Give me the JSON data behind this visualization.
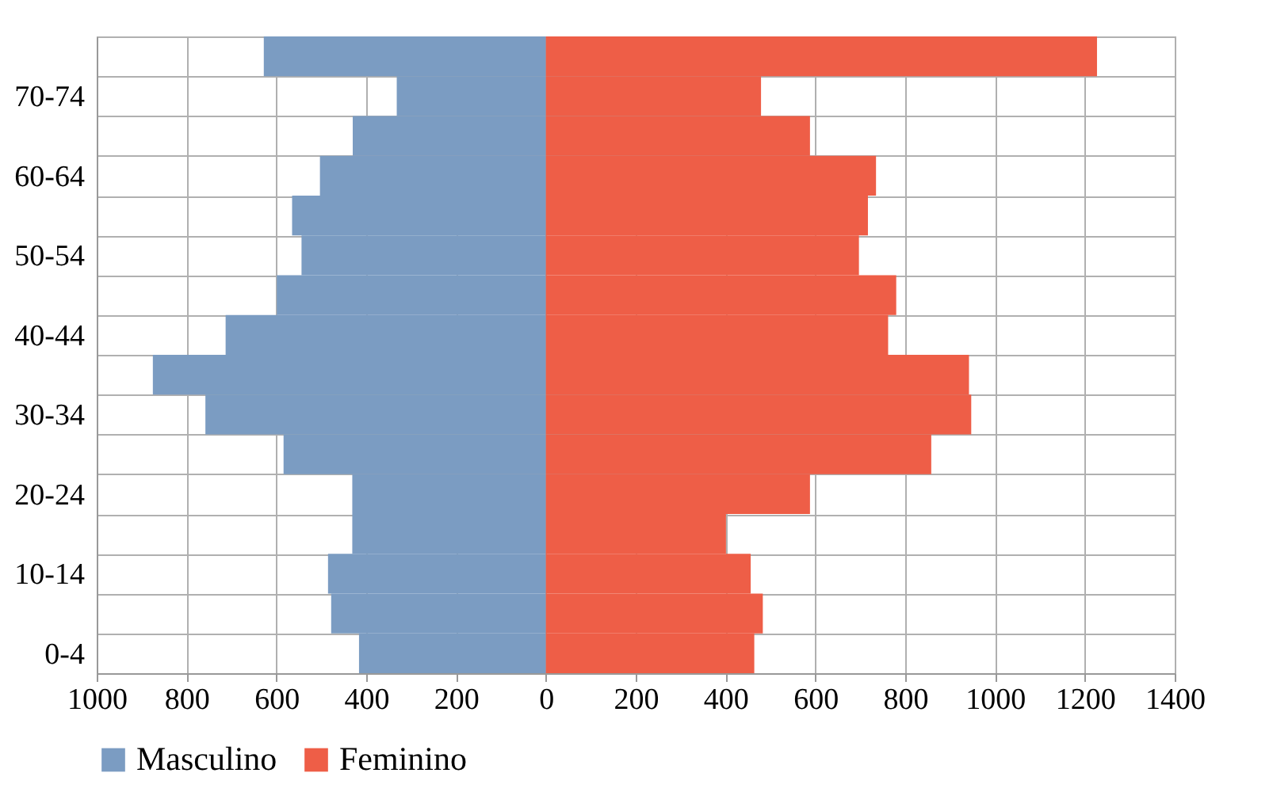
{
  "chart_data": {
    "type": "bar",
    "orientation": "horizontal",
    "categories": [
      null,
      "70-74",
      null,
      "60-64",
      null,
      "50-54",
      null,
      "40-44",
      null,
      "30-34",
      null,
      "20-24",
      null,
      "10-14",
      null,
      "0-4"
    ],
    "series": [
      {
        "name": "Masculino",
        "color": "#7b9cc2",
        "values": [
          -628,
          -332,
          -430,
          -503,
          -565,
          -544,
          -599,
          -713,
          -875,
          -758,
          -584,
          -431,
          -431,
          -485,
          -478,
          -416
        ]
      },
      {
        "name": "Feminino",
        "color": "#ee5e47",
        "values": [
          1227,
          479,
          588,
          735,
          717,
          697,
          780,
          762,
          942,
          947,
          858,
          588,
          401,
          456,
          483,
          464
        ]
      }
    ],
    "xlim": [
      -1000,
      1400
    ],
    "xticks": [
      {
        "value": -1000,
        "label": "1000"
      },
      {
        "value": -800,
        "label": "800"
      },
      {
        "value": -600,
        "label": "600"
      },
      {
        "value": -400,
        "label": "400"
      },
      {
        "value": -200,
        "label": "200"
      },
      0,
      200,
      400,
      600,
      800,
      1000,
      1200,
      1400
    ],
    "stacked": true,
    "grid": true,
    "legend": "bottom"
  }
}
